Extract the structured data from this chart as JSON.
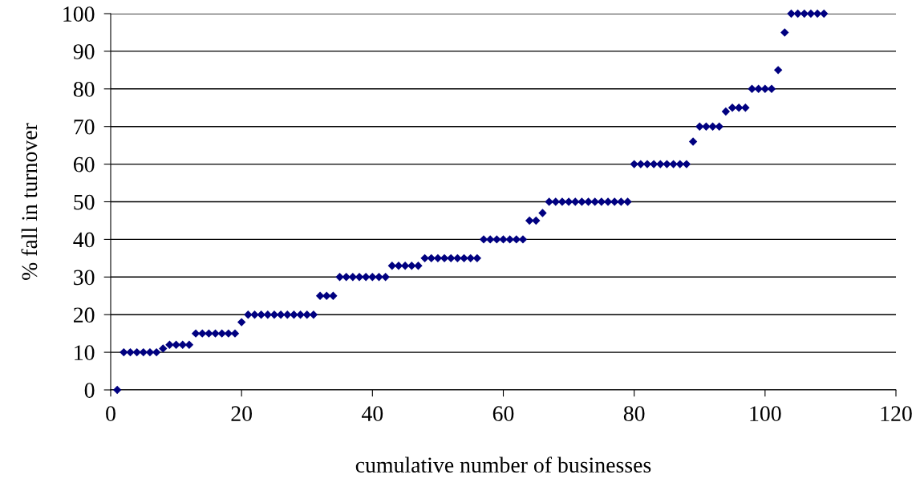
{
  "chart_data": {
    "type": "scatter",
    "xlabel": "cumulative number of businesses",
    "ylabel": "% fall in turnover",
    "xlim": [
      0,
      120
    ],
    "xticks": [
      0,
      20,
      40,
      60,
      80,
      100,
      120
    ],
    "ylim": [
      0,
      100
    ],
    "yticks": [
      0,
      10,
      20,
      30,
      40,
      50,
      60,
      70,
      80,
      90,
      100
    ],
    "grid": "y",
    "marker": "diamond",
    "legend": false,
    "series": [
      {
        "color": "#000080",
        "x": [
          1,
          2,
          3,
          4,
          5,
          6,
          7,
          8,
          9,
          10,
          11,
          12,
          13,
          14,
          15,
          16,
          17,
          18,
          19,
          20,
          21,
          22,
          23,
          24,
          25,
          26,
          27,
          28,
          29,
          30,
          31,
          32,
          33,
          34,
          35,
          36,
          37,
          38,
          39,
          40,
          41,
          42,
          43,
          44,
          45,
          46,
          47,
          48,
          49,
          50,
          51,
          52,
          53,
          54,
          55,
          56,
          57,
          58,
          59,
          60,
          61,
          62,
          63,
          64,
          65,
          66,
          67,
          68,
          69,
          70,
          71,
          72,
          73,
          74,
          75,
          76,
          77,
          78,
          79,
          80,
          81,
          82,
          83,
          84,
          85,
          86,
          87,
          88,
          89,
          90,
          91,
          92,
          93,
          94,
          95,
          96,
          97,
          98,
          99,
          100,
          101,
          102,
          103,
          104,
          105,
          106,
          107,
          108,
          109
        ],
        "values": [
          0,
          10,
          10,
          10,
          10,
          10,
          10,
          11,
          12,
          12,
          12,
          12,
          15,
          15,
          15,
          15,
          15,
          15,
          15,
          18,
          20,
          20,
          20,
          20,
          20,
          20,
          20,
          20,
          20,
          20,
          20,
          25,
          25,
          25,
          30,
          30,
          30,
          30,
          30,
          30,
          30,
          30,
          33,
          33,
          33,
          33,
          33,
          35,
          35,
          35,
          35,
          35,
          35,
          35,
          35,
          35,
          40,
          40,
          40,
          40,
          40,
          40,
          40,
          45,
          45,
          47,
          50,
          50,
          50,
          50,
          50,
          50,
          50,
          50,
          50,
          50,
          50,
          50,
          50,
          60,
          60,
          60,
          60,
          60,
          60,
          60,
          60,
          60,
          66,
          70,
          70,
          70,
          70,
          74,
          75,
          75,
          75,
          80,
          80,
          80,
          80,
          85,
          95,
          100,
          100,
          100,
          100,
          100,
          100
        ]
      }
    ]
  }
}
